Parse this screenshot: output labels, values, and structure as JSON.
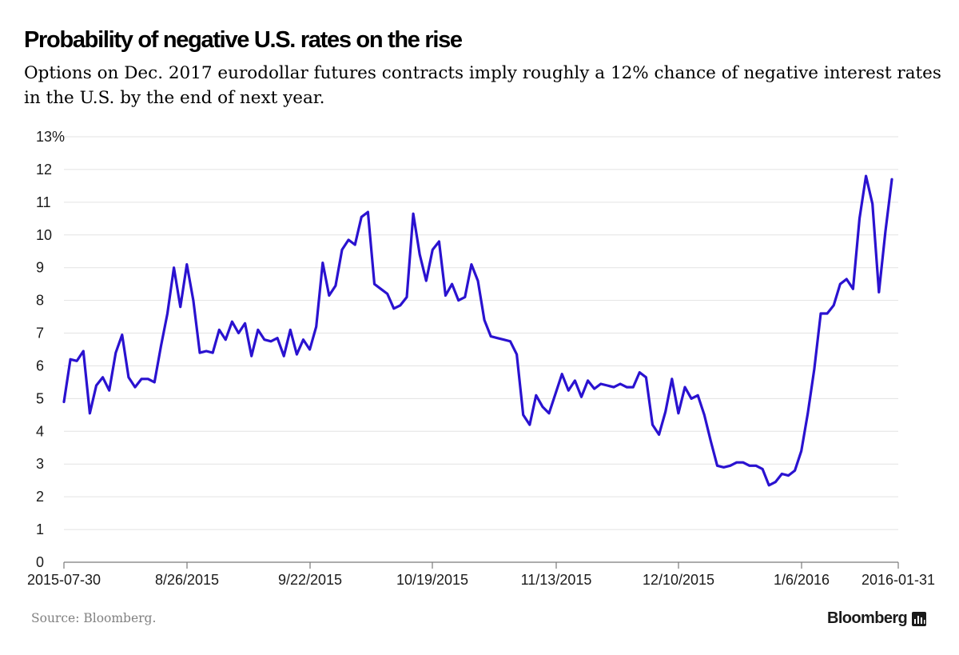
{
  "chart_data": {
    "type": "line",
    "title": "Probability of negative U.S. rates on the rise",
    "subtitle": "Options on Dec. 2017 eurodollar futures contracts imply roughly a 12% chance of negative interest rates in the U.S. by the end of next year.",
    "xlabel": "",
    "ylabel": "",
    "y_ticks": [
      "0",
      "1",
      "2",
      "3",
      "4",
      "5",
      "6",
      "7",
      "8",
      "9",
      "10",
      "11",
      "12",
      "13%"
    ],
    "ylim": [
      0,
      13
    ],
    "x_ticks": [
      "2015-07-30",
      "8/26/2015",
      "9/22/2015",
      "10/19/2015",
      "11/13/2015",
      "12/10/2015",
      "1/6/2016",
      "2016-01-31"
    ],
    "grid": true,
    "legend": "none",
    "line_color": "#2a12d0",
    "series": [
      {
        "values": [
          4.9,
          6.2,
          6.15,
          6.45,
          4.55,
          5.4,
          5.65,
          5.25,
          6.4,
          6.95,
          5.65,
          5.35,
          5.6,
          5.6,
          5.5,
          6.6,
          7.6,
          9.0,
          7.8,
          9.1,
          8.0,
          6.4,
          6.45,
          6.4,
          7.1,
          6.8,
          7.35,
          7.0,
          7.3,
          6.3,
          7.1,
          6.8,
          6.75,
          6.85,
          6.3,
          7.1,
          6.35,
          6.8,
          6.5,
          7.2,
          9.15,
          8.15,
          8.45,
          9.55,
          9.85,
          9.7,
          10.55,
          10.7,
          8.5,
          8.35,
          8.2,
          7.75,
          7.85,
          8.1,
          10.65,
          9.4,
          8.6,
          9.55,
          9.8,
          8.15,
          8.5,
          8.0,
          8.1,
          9.1,
          8.6,
          7.4,
          6.9,
          6.85,
          6.8,
          6.75,
          6.35,
          4.5,
          4.2,
          5.1,
          4.75,
          4.55,
          5.15,
          5.75,
          5.25,
          5.55,
          5.05,
          5.55,
          5.3,
          5.45,
          5.4,
          5.35,
          5.45,
          5.35,
          5.35,
          5.8,
          5.65,
          4.2,
          3.9,
          4.6,
          5.6,
          4.55,
          5.35,
          5.0,
          5.1,
          4.5,
          3.7,
          2.95,
          2.9,
          2.95,
          3.05,
          3.05,
          2.95,
          2.95,
          2.85,
          2.35,
          2.45,
          2.7,
          2.65,
          2.8,
          3.4,
          4.55,
          5.9,
          7.6,
          7.6,
          7.85,
          8.5,
          8.65,
          8.35,
          10.5,
          11.8,
          10.95,
          8.25,
          10.1,
          11.7
        ]
      }
    ]
  },
  "footer": {
    "source": "Source: Bloomberg.",
    "brand": "Bloomberg"
  }
}
